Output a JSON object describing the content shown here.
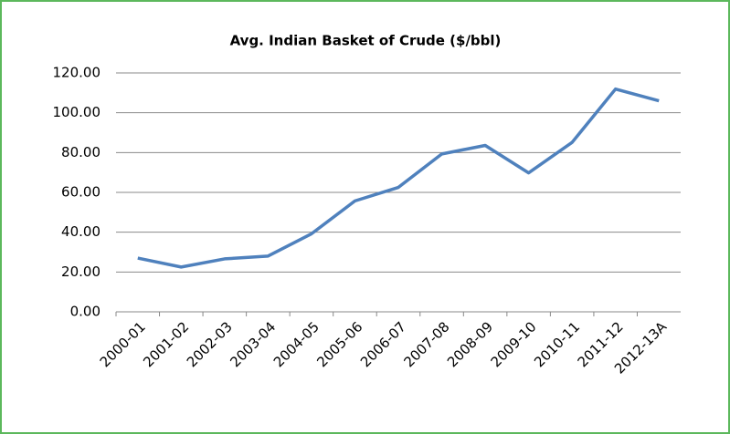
{
  "chart_data": {
    "type": "line",
    "title": "Avg. Indian Basket of Crude ($/bbl)",
    "categories": [
      "2000-01",
      "2001-02",
      "2002-03",
      "2003-04",
      "2004-05",
      "2005-06",
      "2006-07",
      "2007-08",
      "2008-09",
      "2009-10",
      "2010-11",
      "2011-12",
      "2012-13A"
    ],
    "series": [
      {
        "name": "Avg. Indian Basket of Crude",
        "color": "#4f81bd",
        "values": [
          27.0,
          22.5,
          26.6,
          28.0,
          39.2,
          55.7,
          62.5,
          79.3,
          83.6,
          69.8,
          85.1,
          111.9,
          106.0
        ]
      }
    ],
    "ylim": [
      0,
      120
    ],
    "yticks": [
      {
        "value": 0,
        "label": "0.00"
      },
      {
        "value": 20,
        "label": "20.00"
      },
      {
        "value": 40,
        "label": "40.00"
      },
      {
        "value": 60,
        "label": "60.00"
      },
      {
        "value": 80,
        "label": "80.00"
      },
      {
        "value": 100,
        "label": "100.00"
      },
      {
        "value": 120,
        "label": "120.00"
      }
    ],
    "grid": true
  }
}
